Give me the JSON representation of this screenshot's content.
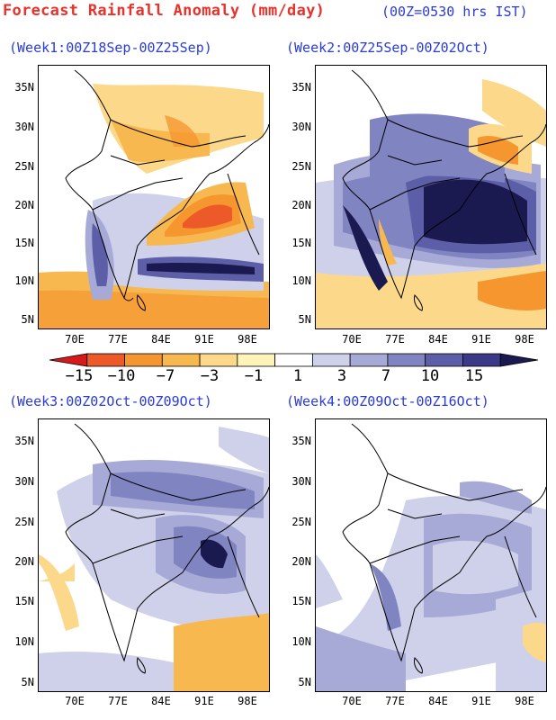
{
  "header": {
    "title": "Forecast Rainfall Anomaly (mm/day)",
    "subtitle": "(00Z=0530 hrs IST)"
  },
  "panels": [
    {
      "label": "(Week1:00Z18Sep-00Z25Sep)"
    },
    {
      "label": "(Week2:00Z25Sep-00Z02Oct)"
    },
    {
      "label": "(Week3:00Z02Oct-00Z09Oct)"
    },
    {
      "label": "(Week4:00Z09Oct-00Z16Oct)"
    }
  ],
  "axes": {
    "lat_labels": [
      "35N",
      "30N",
      "25N",
      "20N",
      "15N",
      "10N",
      "5N"
    ],
    "lon_labels": [
      "70E",
      "77E",
      "84E",
      "91E",
      "98E"
    ]
  },
  "colorbar": {
    "labels": [
      "−15",
      "−10",
      "−7",
      "−3",
      "−1",
      "1",
      "3",
      "7",
      "10",
      "15"
    ],
    "colors": [
      "#d7191c",
      "#ec5a2a",
      "#f5962f",
      "#f8b850",
      "#fcd98a",
      "#fff4b8",
      "#ffffff",
      "#cfd1ea",
      "#a7aad6",
      "#8084c0",
      "#5c5ea8",
      "#3c3a88",
      "#1b1a50"
    ]
  },
  "colors": {
    "title": "#e8332c",
    "subtitle": "#2a3bdc",
    "neg_strong": "#ec5a2a",
    "neg_mid": "#f5962f",
    "neg_light": "#f8b850",
    "neg_faint": "#fcd98a",
    "pos_faint": "#cfd1ea",
    "pos_light": "#a7aad6",
    "pos_mid": "#8084c0",
    "pos_strong": "#5c5ea8",
    "pos_deep": "#1b1a50"
  }
}
